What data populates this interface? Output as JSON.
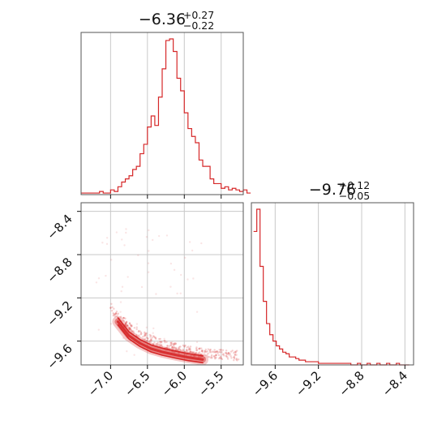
{
  "chart_data": [
    {
      "type": "histogram",
      "panel": "top-left",
      "title": {
        "main": "−6.36",
        "upper": "+0.27",
        "lower": "−0.22"
      },
      "xlim": [
        -7.4,
        -5.2
      ],
      "xticks": [
        -7.0,
        -6.5,
        -6.0,
        -5.5
      ],
      "grid": true,
      "color": "#d62728",
      "bins": {
        "x0": -7.4,
        "width": 0.05,
        "counts": [
          1,
          1,
          1,
          1,
          1,
          2,
          1,
          1,
          3,
          2,
          5,
          8,
          10,
          12,
          16,
          18,
          26,
          32,
          43,
          50,
          44,
          62,
          80,
          98,
          99,
          91,
          74,
          66,
          52,
          42,
          37,
          33,
          22,
          18,
          18,
          10,
          7,
          7,
          4,
          5,
          3,
          4,
          3,
          2,
          3,
          1
        ]
      }
    },
    {
      "type": "scatter-contour",
      "panel": "bottom-left",
      "xlim": [
        -7.4,
        -5.2
      ],
      "ylim": [
        -9.82,
        -8.32
      ],
      "xticks": [
        -7.0,
        -6.5,
        -6.0,
        -5.5
      ],
      "xtick_labels": [
        "−7.0",
        "−6.5",
        "−6.0",
        "−5.5"
      ],
      "yticks": [
        -8.4,
        -8.8,
        -9.2,
        -9.6
      ],
      "ytick_labels": [
        "−8.4",
        "−8.8",
        "−9.2",
        "−9.6"
      ],
      "grid": true,
      "color": "#d62728",
      "contour_center": [
        [
          -6.9,
          -9.42
        ],
        [
          -6.75,
          -9.55
        ],
        [
          -6.6,
          -9.62
        ],
        [
          -6.45,
          -9.67
        ],
        [
          -6.3,
          -9.7
        ],
        [
          -6.1,
          -9.73
        ],
        [
          -5.95,
          -9.75
        ],
        [
          -5.75,
          -9.77
        ]
      ]
    },
    {
      "type": "histogram",
      "panel": "bottom-right",
      "title": {
        "main": "−9.76",
        "upper": "+0.12",
        "lower": "−0.05"
      },
      "xlim": [
        -9.82,
        -8.32
      ],
      "xticks": [
        -9.6,
        -9.2,
        -8.8,
        -8.4
      ],
      "xtick_labels": [
        "−9.6",
        "−9.2",
        "−8.8",
        "−8.4"
      ],
      "grid": true,
      "color": "#d62728",
      "bins": {
        "x0": -9.8,
        "width": 0.03,
        "counts": [
          84,
          98,
          62,
          40,
          26,
          19,
          15,
          12,
          10,
          8,
          7,
          5,
          5,
          4,
          3,
          3,
          2,
          2,
          2,
          2,
          1,
          1,
          1,
          1,
          1,
          1,
          1,
          1,
          1,
          1,
          0,
          0,
          1,
          0,
          0,
          1,
          0,
          0,
          1,
          0,
          0,
          1,
          0,
          0,
          1,
          0,
          0,
          0
        ]
      }
    }
  ]
}
